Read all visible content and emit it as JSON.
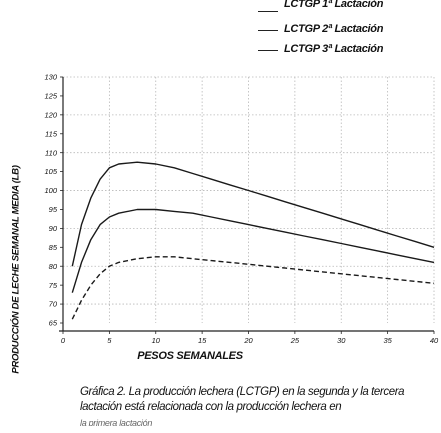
{
  "chart_data": {
    "type": "line",
    "title": "",
    "xlabel": "PESOS SEMANALES",
    "ylabel": "PRODUCCIÓN DE LECHE SEMANAL MEDIA (LB)",
    "xlim": [
      0,
      40
    ],
    "ylim": [
      65,
      130
    ],
    "xticks": [
      0,
      5,
      10,
      15,
      20,
      25,
      30,
      35,
      40
    ],
    "yticks": [
      65,
      70,
      75,
      80,
      85,
      90,
      95,
      100,
      105,
      110,
      115,
      120,
      125,
      130
    ],
    "grid": true,
    "legend_position": "top-right",
    "series": [
      {
        "name": "LCTGP 1ª Lactación",
        "style": "dashed",
        "x": [
          1,
          2,
          3,
          4,
          5,
          6,
          8,
          10,
          12,
          14,
          16,
          18,
          20,
          22,
          24,
          26,
          28,
          30,
          32,
          34,
          36,
          38,
          40
        ],
        "y": [
          66,
          71,
          75,
          78,
          80,
          81,
          82,
          82.5,
          82.5,
          82,
          81.5,
          81,
          80.5,
          80,
          79.5,
          79,
          78.5,
          78,
          77.5,
          77,
          76.5,
          76,
          75.5
        ]
      },
      {
        "name": "LCTGP 2ª Lactación",
        "style": "solid",
        "x": [
          1,
          2,
          3,
          4,
          5,
          6,
          8,
          10,
          12,
          14,
          16,
          18,
          20,
          22,
          24,
          26,
          28,
          30,
          32,
          34,
          36,
          38,
          40
        ],
        "y": [
          73,
          81,
          87,
          91,
          93,
          94,
          95,
          95,
          94.5,
          94,
          93,
          92,
          91,
          90,
          89,
          88,
          87,
          86,
          85,
          84,
          83,
          82,
          81
        ]
      },
      {
        "name": "LCTGP 3ª Lactación",
        "style": "solid",
        "x": [
          1,
          2,
          3,
          4,
          5,
          6,
          8,
          10,
          12,
          14,
          16,
          18,
          20,
          22,
          24,
          26,
          28,
          30,
          32,
          34,
          36,
          38,
          40
        ],
        "y": [
          80,
          91,
          98,
          103,
          106,
          107,
          107.5,
          107,
          106,
          104.5,
          103,
          101.5,
          100,
          98.5,
          97,
          95.5,
          94,
          92.5,
          91,
          89.5,
          88,
          86.5,
          85
        ]
      }
    ]
  },
  "caption": {
    "text": "Gráfica 2.  La producción lechera (LCTGP) en la segunda y la tercera lactación está relacionada con la producción  lechera en",
    "cut_line": "la primera lactación"
  }
}
